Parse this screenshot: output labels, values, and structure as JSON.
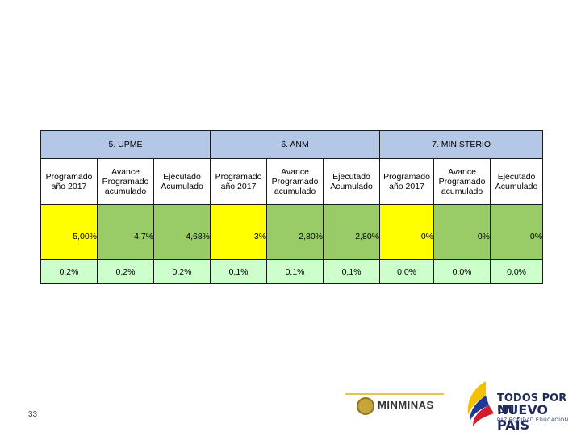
{
  "table": {
    "groups": [
      "5. UPME",
      "6. ANM",
      "7. MINISTERIO"
    ],
    "subheaders": [
      "Programado año 2017",
      "Avance Programado acumulado",
      "Ejecutado Acumulado",
      "Programado año 2017",
      "Avance Programado acumulado",
      "Ejecutado Acumulado",
      "Programado año 2017",
      "Avance Programado acumulado",
      "Ejecutado Acumulado"
    ],
    "values": [
      "5,00%",
      "4,7%",
      "4,68%",
      "3%",
      "2,80%",
      "2,80%",
      "0%",
      "0%",
      "0%"
    ],
    "weights": [
      "0,2%",
      "0,2%",
      "0,2%",
      "0,1%",
      "0,1%",
      "0,1%",
      "0,0%",
      "0,0%",
      "0,0%"
    ]
  },
  "footer": {
    "page_number": "33",
    "minminas": "MINMINAS",
    "logo_line1": "TODOS POR UN",
    "logo_line2": "NUEVO PAÍS",
    "logo_line3": "PAZ EQUIDAD EDUCACIÓN"
  },
  "colors": {
    "header_blue": "#b4c7e7",
    "yellow": "#ffff00",
    "green": "#99cc66",
    "pale_green": "#ccffcc"
  }
}
